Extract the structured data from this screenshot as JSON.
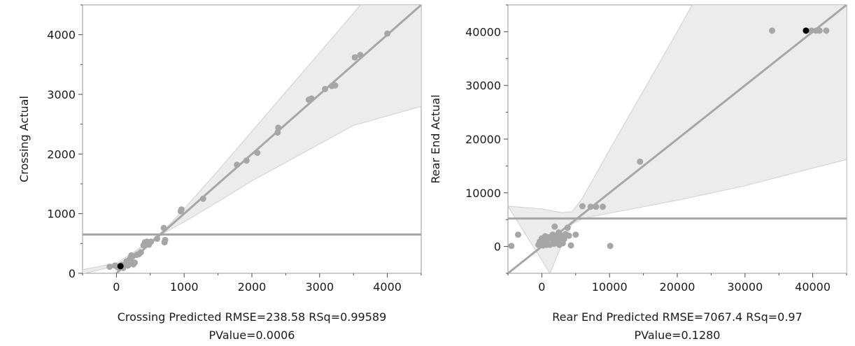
{
  "colors": {
    "point": "#a6a6a6",
    "highlight_point": "#000000",
    "fit_line": "#a6a6a6",
    "mean_line": "#a6a6a6",
    "confidence_band": "#ececec",
    "confidence_band_edge": "#cfcfcf",
    "frame": "#9a9a9a"
  },
  "chart_data": [
    {
      "type": "scatter",
      "title": "",
      "ylabel": "Crossing Actual",
      "xlabel_line1": "Crossing Predicted RMSE=238.58 RSq=0.99589",
      "xlabel_line2": "PValue=0.0006",
      "xlim": [
        -500,
        4500
      ],
      "ylim": [
        0,
        4500
      ],
      "xticks": [
        0,
        1000,
        2000,
        3000,
        4000
      ],
      "yticks": [
        0,
        1000,
        2000,
        3000,
        4000
      ],
      "grid": false,
      "mean_line_y": 650,
      "fit_line": [
        [
          -500,
          -500
        ],
        [
          4500,
          4500
        ]
      ],
      "band_upper": [
        [
          -500,
          -10
        ],
        [
          0,
          130
        ],
        [
          250,
          320
        ],
        [
          500,
          530
        ],
        [
          750,
          780
        ],
        [
          1000,
          1080
        ],
        [
          1500,
          1720
        ],
        [
          2000,
          2380
        ],
        [
          2500,
          3040
        ],
        [
          3000,
          3700
        ],
        [
          3500,
          4360
        ],
        [
          3600,
          4500
        ],
        [
          4500,
          4500
        ]
      ],
      "band_lower": [
        [
          -500,
          60
        ],
        [
          0,
          170
        ],
        [
          250,
          350
        ],
        [
          500,
          550
        ],
        [
          750,
          710
        ],
        [
          1000,
          860
        ],
        [
          1500,
          1200
        ],
        [
          2000,
          1550
        ],
        [
          2500,
          1860
        ],
        [
          3000,
          2170
        ],
        [
          3500,
          2480
        ],
        [
          4000,
          2640
        ],
        [
          4500,
          2800
        ]
      ],
      "points": [
        [
          -100,
          110
        ],
        [
          -20,
          130
        ],
        [
          20,
          100
        ],
        [
          50,
          120
        ],
        [
          80,
          140
        ],
        [
          100,
          90
        ],
        [
          130,
          150
        ],
        [
          150,
          200
        ],
        [
          170,
          130
        ],
        [
          190,
          160
        ],
        [
          200,
          240
        ],
        [
          220,
          300
        ],
        [
          250,
          150
        ],
        [
          270,
          180
        ],
        [
          300,
          310
        ],
        [
          330,
          320
        ],
        [
          360,
          350
        ],
        [
          400,
          470
        ],
        [
          420,
          520
        ],
        [
          450,
          530
        ],
        [
          480,
          480
        ],
        [
          510,
          530
        ],
        [
          600,
          580
        ],
        [
          700,
          760
        ],
        [
          710,
          520
        ],
        [
          720,
          560
        ],
        [
          950,
          1040
        ],
        [
          960,
          1070
        ],
        [
          1280,
          1250
        ],
        [
          1780,
          1820
        ],
        [
          1920,
          1890
        ],
        [
          2080,
          2020
        ],
        [
          2380,
          2360
        ],
        [
          2390,
          2440
        ],
        [
          2840,
          2910
        ],
        [
          2880,
          2930
        ],
        [
          3080,
          3090
        ],
        [
          3180,
          3140
        ],
        [
          3230,
          3150
        ],
        [
          3520,
          3620
        ],
        [
          3600,
          3660
        ],
        [
          4000,
          4020
        ]
      ],
      "highlight_points": [
        [
          60,
          120
        ]
      ]
    },
    {
      "type": "scatter",
      "title": "",
      "ylabel": "Rear End Actual",
      "xlabel_line1": "Rear End Predicted RMSE=7067.4 RSq=0.97",
      "xlabel_line2": "PValue=0.1280",
      "xlim": [
        -5000,
        45000
      ],
      "ylim": [
        -5000,
        45000
      ],
      "xticks": [
        0,
        10000,
        20000,
        30000,
        40000
      ],
      "yticks": [
        0,
        10000,
        20000,
        30000,
        40000
      ],
      "grid": false,
      "mean_line_y": 5200,
      "fit_line": [
        [
          -5000,
          -5000
        ],
        [
          45000,
          45000
        ]
      ],
      "band_upper": [
        [
          -5000,
          7500
        ],
        [
          0,
          7000
        ],
        [
          3000,
          6300
        ],
        [
          4500,
          6500
        ],
        [
          6000,
          9000
        ],
        [
          10000,
          18000
        ],
        [
          15000,
          29000
        ],
        [
          20000,
          40000
        ],
        [
          22200,
          45000
        ],
        [
          45000,
          45000
        ]
      ],
      "band_lower": [
        [
          1200,
          -5000
        ],
        [
          3000,
          500
        ],
        [
          4500,
          4200
        ],
        [
          6000,
          5200
        ],
        [
          10000,
          6200
        ],
        [
          20000,
          8600
        ],
        [
          30000,
          11300
        ],
        [
          40000,
          14600
        ],
        [
          45000,
          16200
        ],
        [
          45000,
          -5000
        ]
      ],
      "points": [
        [
          -4500,
          100
        ],
        [
          -3500,
          2200
        ],
        [
          -500,
          300
        ],
        [
          -300,
          900
        ],
        [
          0,
          1500
        ],
        [
          200,
          200
        ],
        [
          500,
          1900
        ],
        [
          600,
          800
        ],
        [
          700,
          300
        ],
        [
          1000,
          1700
        ],
        [
          1200,
          300
        ],
        [
          1500,
          1400
        ],
        [
          1600,
          2200
        ],
        [
          1800,
          500
        ],
        [
          1900,
          3700
        ],
        [
          2100,
          2000
        ],
        [
          2200,
          800
        ],
        [
          2400,
          1200
        ],
        [
          2500,
          2600
        ],
        [
          2600,
          300
        ],
        [
          2800,
          1700
        ],
        [
          3000,
          2000
        ],
        [
          3100,
          600
        ],
        [
          3300,
          1400
        ],
        [
          3500,
          2300
        ],
        [
          3800,
          3500
        ],
        [
          4000,
          2000
        ],
        [
          4300,
          200
        ],
        [
          5000,
          2200
        ],
        [
          6000,
          7500
        ],
        [
          7200,
          7400
        ],
        [
          8000,
          7400
        ],
        [
          9000,
          7400
        ],
        [
          10100,
          100
        ],
        [
          14500,
          15800
        ],
        [
          34000,
          40200
        ],
        [
          39800,
          40200
        ],
        [
          40500,
          40200
        ],
        [
          41000,
          40200
        ],
        [
          42000,
          40200
        ]
      ],
      "highlight_points": [
        [
          39000,
          40200
        ]
      ]
    }
  ]
}
